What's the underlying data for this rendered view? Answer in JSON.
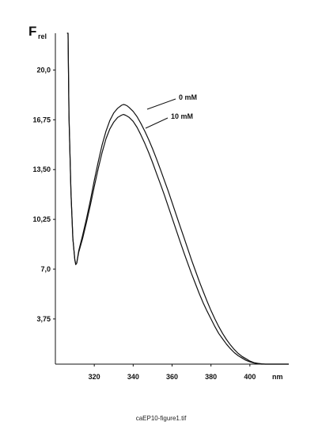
{
  "caption": "caEP10-figure1.tif",
  "chart_data": {
    "type": "line",
    "ylabel_main": "F",
    "ylabel_sub": "rel",
    "xlabel": "nm",
    "xlim": [
      300,
      420
    ],
    "ylim": [
      0.8,
      22.4
    ],
    "x_ticks": [
      320,
      340,
      360,
      380,
      400
    ],
    "y_ticks": [
      "3,75",
      "7,0",
      "10,25",
      "13,50",
      "16,75",
      "20,0"
    ],
    "y_tick_values": [
      3.75,
      7.0,
      10.25,
      13.5,
      16.75,
      20.0
    ],
    "series": [
      {
        "name": "0 mM",
        "x": [
          306,
          306.5,
          307,
          308,
          309,
          310,
          310.5,
          311,
          312,
          314,
          316,
          318,
          320,
          322,
          324,
          326,
          328,
          330,
          332,
          334,
          335,
          336,
          337,
          338,
          340,
          342,
          344,
          346,
          348,
          350,
          352,
          354,
          356,
          358,
          360,
          362,
          364,
          366,
          368,
          370,
          372,
          374,
          376,
          378,
          380,
          382,
          384,
          386,
          388,
          390,
          392,
          394,
          396,
          398,
          400,
          402,
          404,
          406,
          408,
          410,
          412,
          414,
          416,
          418,
          420
        ],
        "y": [
          22.4,
          22.4,
          17.0,
          12.0,
          9.0,
          7.6,
          7.3,
          7.4,
          8.2,
          9.2,
          10.3,
          11.5,
          12.8,
          14.0,
          15.1,
          16.0,
          16.7,
          17.2,
          17.5,
          17.7,
          17.75,
          17.72,
          17.65,
          17.55,
          17.3,
          16.95,
          16.5,
          16.0,
          15.45,
          14.85,
          14.2,
          13.5,
          12.8,
          12.1,
          11.35,
          10.6,
          9.85,
          9.1,
          8.35,
          7.6,
          6.9,
          6.2,
          5.55,
          4.9,
          4.3,
          3.75,
          3.25,
          2.8,
          2.4,
          2.05,
          1.75,
          1.5,
          1.3,
          1.15,
          1.0,
          0.9,
          0.85,
          0.82,
          0.8,
          0.8,
          0.8,
          0.8,
          0.8,
          0.8,
          0.8
        ]
      },
      {
        "name": "10 mM",
        "x": [
          306,
          306.5,
          307,
          308,
          309,
          310,
          310.5,
          311,
          312,
          314,
          316,
          318,
          320,
          322,
          324,
          326,
          328,
          330,
          332,
          334,
          335,
          336,
          337,
          338,
          340,
          342,
          344,
          346,
          348,
          350,
          352,
          354,
          356,
          358,
          360,
          362,
          364,
          366,
          368,
          370,
          372,
          374,
          376,
          378,
          380,
          382,
          384,
          386,
          388,
          390,
          392,
          394,
          396,
          398,
          400,
          402,
          404,
          406,
          408,
          410,
          412,
          414,
          416,
          418,
          420
        ],
        "y": [
          22.4,
          22.4,
          17.0,
          12.0,
          9.0,
          7.6,
          7.3,
          7.4,
          8.1,
          9.0,
          10.05,
          11.2,
          12.4,
          13.55,
          14.6,
          15.5,
          16.15,
          16.6,
          16.9,
          17.05,
          17.1,
          17.05,
          16.98,
          16.9,
          16.65,
          16.25,
          15.75,
          15.2,
          14.6,
          13.95,
          13.25,
          12.55,
          11.85,
          11.1,
          10.35,
          9.6,
          8.85,
          8.1,
          7.4,
          6.7,
          6.05,
          5.4,
          4.8,
          4.25,
          3.75,
          3.25,
          2.8,
          2.45,
          2.1,
          1.8,
          1.55,
          1.35,
          1.2,
          1.05,
          0.95,
          0.88,
          0.83,
          0.8,
          0.8,
          0.8,
          0.8,
          0.8,
          0.8,
          0.8,
          0.8
        ]
      }
    ],
    "grid": false,
    "legend": "inline labels"
  }
}
